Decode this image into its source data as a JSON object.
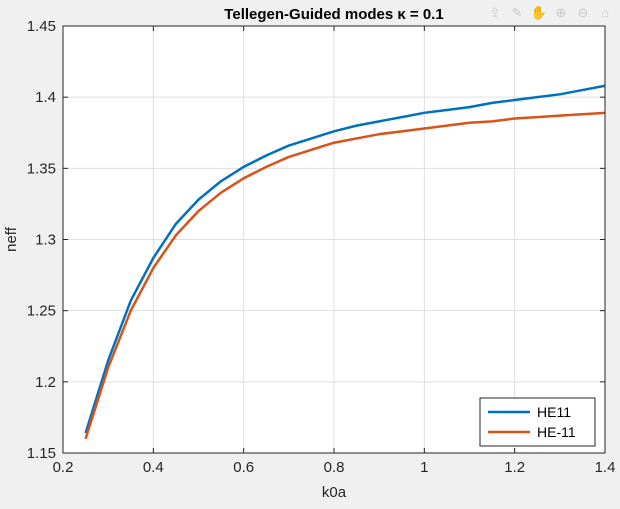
{
  "toolbar": {
    "icons": [
      "export-icon",
      "brush-icon",
      "pan-hand-icon",
      "zoom-in-icon",
      "zoom-out-icon",
      "home-icon"
    ]
  },
  "chart_data": {
    "type": "line",
    "title": "Tellegen-Guided modes κ = 0.1",
    "xlabel": "k0a",
    "ylabel": "neff",
    "xlim": [
      0.2,
      1.4
    ],
    "ylim": [
      1.15,
      1.45
    ],
    "xticks": [
      "0.2",
      "0.4",
      "0.6",
      "0.8",
      "1",
      "1.2",
      "1.4"
    ],
    "yticks": [
      "1.15",
      "1.2",
      "1.25",
      "1.3",
      "1.35",
      "1.4",
      "1.45"
    ],
    "grid": true,
    "legend_position": "bottom-right",
    "colors": {
      "background": "#f0f0f0",
      "axes": "#ffffff",
      "grid": "#dfdfdf",
      "axis_line": "#262626"
    },
    "x": [
      0.25,
      0.3,
      0.35,
      0.4,
      0.45,
      0.5,
      0.55,
      0.6,
      0.65,
      0.7,
      0.75,
      0.8,
      0.85,
      0.9,
      0.95,
      1.0,
      1.05,
      1.1,
      1.15,
      1.2,
      1.25,
      1.3,
      1.35,
      1.4
    ],
    "series": [
      {
        "name": "HE11",
        "color": "#0072bd",
        "values": [
          1.164,
          1.215,
          1.257,
          1.287,
          1.311,
          1.328,
          1.341,
          1.351,
          1.359,
          1.366,
          1.371,
          1.376,
          1.38,
          1.383,
          1.386,
          1.389,
          1.391,
          1.393,
          1.396,
          1.398,
          1.4,
          1.402,
          1.405,
          1.408
        ]
      },
      {
        "name": "HE-11",
        "color": "#d95319",
        "values": [
          1.16,
          1.21,
          1.25,
          1.28,
          1.303,
          1.32,
          1.333,
          1.343,
          1.351,
          1.358,
          1.363,
          1.368,
          1.371,
          1.374,
          1.376,
          1.378,
          1.38,
          1.382,
          1.383,
          1.385,
          1.386,
          1.387,
          1.388,
          1.389
        ]
      }
    ]
  }
}
